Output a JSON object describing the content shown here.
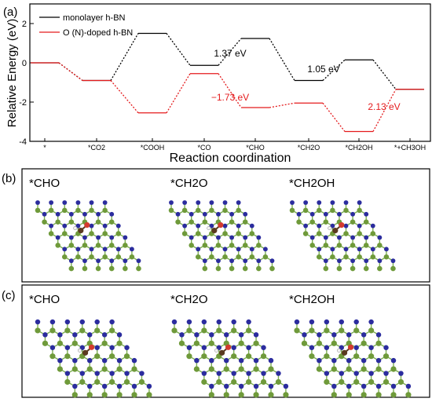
{
  "chart_data": {
    "type": "line",
    "panel_label": "(a)",
    "xlabel": "Reaction coordination",
    "ylabel": "Relative Energy (eV)",
    "categories": [
      "*",
      "*CO2",
      "*COOH",
      "*CO",
      "*CHO",
      "*CH2O",
      "*CH2OH",
      "*+CH3OH"
    ],
    "ylim": [
      -4,
      3
    ],
    "yticks": [
      -4,
      -2,
      0,
      2
    ],
    "legend_position": "top-left",
    "grid": false,
    "series": [
      {
        "name": "monolayer h-BN",
        "color": "#000000",
        "values": [
          0,
          -0.9,
          1.5,
          -0.13,
          1.24,
          -0.9,
          0.15,
          -1.35
        ]
      },
      {
        "name": "O (N)-doped h-BN",
        "color": "#e41a1c",
        "values": [
          0,
          -0.9,
          -2.55,
          -0.55,
          -2.28,
          -2.05,
          -3.5,
          -1.35
        ]
      }
    ],
    "annotations": [
      {
        "text": "1.37 eV",
        "color": "#000000"
      },
      {
        "text": "−1.73 eV",
        "color": "#e41a1c"
      },
      {
        "text": "1.05 eV",
        "color": "#000000"
      },
      {
        "text": "2.13 eV",
        "color": "#e41a1c"
      }
    ]
  },
  "structure_panels": [
    {
      "label": "(b)",
      "titles": [
        "*CHO",
        "*CH2O",
        "*CH2OH"
      ]
    },
    {
      "label": "(c)",
      "titles": [
        "*CHO",
        "*CH2O",
        "*CH2OH"
      ]
    }
  ],
  "colors": {
    "boron": "#6f9a3a",
    "nitrogen": "#2b2c9e",
    "bond": "#7cae52",
    "carbon": "#5a3a20",
    "oxygen": "#d43b2e",
    "hydrogen": "#f2f2f2"
  }
}
